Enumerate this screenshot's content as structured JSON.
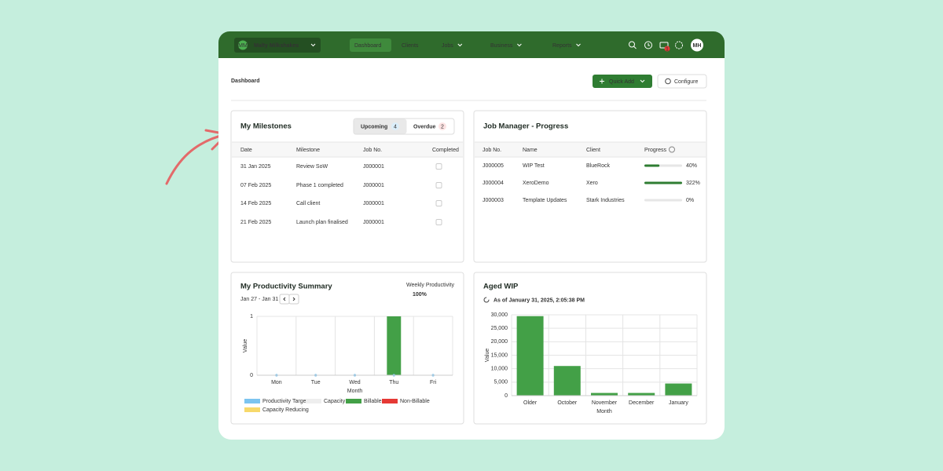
{
  "nav": {
    "org_initials": "MM",
    "org": "Malty Milkshakes",
    "items": [
      "Dashboard",
      "Clients",
      "Jobs",
      "Business",
      "Reports"
    ],
    "notifications": 1,
    "user": "MH"
  },
  "header": {
    "title": "Dashboard",
    "quick_add": "Quick Add",
    "configure": "Configure"
  },
  "milestones": {
    "title": "My Milestones",
    "tabs": [
      {
        "label": "Upcoming",
        "count": 4
      },
      {
        "label": "Overdue",
        "count": 2
      }
    ],
    "columns": [
      "Date",
      "Milestone",
      "Job No.",
      "Completed"
    ],
    "rows": [
      [
        "31 Jan 2025",
        "Review SoW",
        "J000001"
      ],
      [
        "07 Feb 2025",
        "Phase 1 completed",
        "J000001"
      ],
      [
        "14 Feb 2025",
        "Call client",
        "J000001"
      ],
      [
        "21 Feb 2025",
        "Launch plan finalised",
        "J000001"
      ]
    ]
  },
  "job_progress": {
    "title": "Job Manager - Progress",
    "columns": [
      "Job No.",
      "Name",
      "Client",
      "Progress"
    ],
    "rows": [
      {
        "job": "J000005",
        "name": "WIP Test",
        "client": "BlueRock",
        "progress": 40,
        "progress_label": "40%"
      },
      {
        "job": "J000004",
        "name": "XeroDemo",
        "client": "Xero",
        "progress": 322,
        "progress_label": "322%"
      },
      {
        "job": "J000003",
        "name": "Template Updates",
        "client": "Stark Industries",
        "progress": 0,
        "progress_label": "0%"
      }
    ]
  },
  "productivity": {
    "title": "My Productivity Summary",
    "date_range": "Jan 27 - Jan 31",
    "weekly_label": "Weekly Productivity",
    "weekly_value": "100%",
    "chart": {
      "type": "bar",
      "categories": [
        "Mon",
        "Tue",
        "Wed",
        "Thu",
        "Fri"
      ],
      "series": [
        {
          "name": "Productivity Target",
          "color": "#7cc4f0",
          "style": "point",
          "values": [
            0,
            0,
            0,
            0,
            0
          ]
        },
        {
          "name": "Capacity",
          "color": "#eeeeee",
          "values": [
            0,
            0,
            0,
            0,
            0
          ]
        },
        {
          "name": "Billable",
          "color": "#43a047",
          "values": [
            0,
            0,
            0,
            1,
            0
          ]
        },
        {
          "name": "Non-Billable",
          "color": "#e53935",
          "values": [
            0,
            0,
            0,
            0,
            0
          ]
        },
        {
          "name": "Capacity Reducing",
          "color": "#f7d96b",
          "values": [
            0,
            0,
            0,
            0,
            0
          ]
        }
      ],
      "ylim": [
        0,
        1
      ],
      "yticks": [
        0,
        1
      ],
      "xlabel": "Month",
      "ylabel": "Value",
      "grid": true
    }
  },
  "aged_wip": {
    "title": "Aged WIP",
    "as_of": "As of January 31, 2025, 2:05:38 PM",
    "chart": {
      "type": "bar",
      "categories": [
        "Older",
        "October",
        "November",
        "December",
        "January"
      ],
      "series": [
        {
          "name": "Value",
          "color": "#43a047",
          "values": [
            29500,
            11000,
            1000,
            1000,
            4500
          ]
        }
      ],
      "ylim": [
        0,
        30000
      ],
      "yticks": [
        0,
        {
          "value": 5000,
          "label": "5,000"
        },
        {
          "value": 10000,
          "label": "10,000"
        },
        {
          "value": 15000,
          "label": "15,000"
        },
        {
          "value": 20000,
          "label": "20,000"
        },
        {
          "value": 25000,
          "label": "25,000"
        },
        {
          "value": 30000,
          "label": "30,000"
        }
      ],
      "xlabel": "Month",
      "ylabel": "Value",
      "grid": true
    }
  }
}
